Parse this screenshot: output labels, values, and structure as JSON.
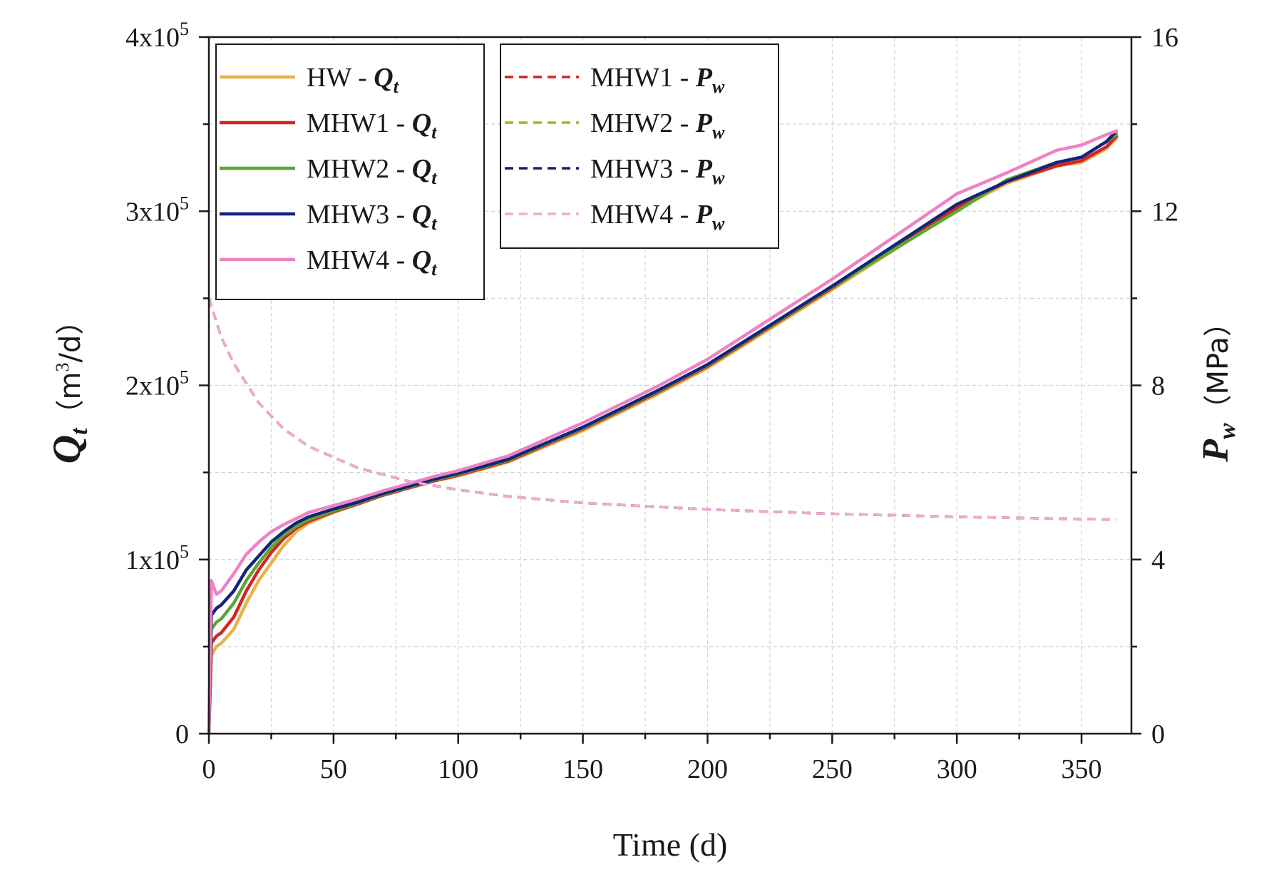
{
  "chart_data": {
    "type": "line",
    "xlabel": "Time (d)",
    "ylabel_left": {
      "symbol": "Q",
      "sub": "t",
      "unit_prefix": "（m",
      "unit_sup": "3",
      "unit_suffix": "/d）"
    },
    "ylabel_right": {
      "symbol": "P",
      "sub": "w",
      "unit": "（MPa）"
    },
    "xlim": [
      0,
      370
    ],
    "ylim_left": [
      0,
      400000
    ],
    "ylim_right": [
      0,
      16
    ],
    "x_ticks": [
      0,
      50,
      100,
      150,
      200,
      250,
      300,
      350
    ],
    "x_tick_labels": [
      "0",
      "50",
      "100",
      "150",
      "200",
      "250",
      "300",
      "350"
    ],
    "y_left_ticks": [
      0,
      100000,
      200000,
      300000,
      400000
    ],
    "y_left_tick_labels": [
      {
        "base": "0",
        "exp": ""
      },
      {
        "base": "1x10",
        "exp": "5"
      },
      {
        "base": "2x10",
        "exp": "5"
      },
      {
        "base": "3x10",
        "exp": "5"
      },
      {
        "base": "4x10",
        "exp": "5"
      }
    ],
    "y_right_ticks": [
      0,
      4,
      8,
      12,
      16
    ],
    "y_right_tick_labels": [
      "0",
      "4",
      "8",
      "12",
      "16"
    ],
    "grid": true,
    "legend_left_position": "top-left",
    "legend_right_position": "top-center",
    "series": [
      {
        "name": "HW",
        "quantity": "Q",
        "sub": "t",
        "axis": "left",
        "style": "solid",
        "color": "#e8b24a",
        "x": [
          0,
          1,
          3,
          5,
          10,
          15,
          20,
          25,
          30,
          35,
          40,
          50,
          60,
          70,
          80,
          90,
          100,
          120,
          150,
          180,
          200,
          250,
          300,
          320,
          340,
          350,
          360,
          364
        ],
        "values": [
          0,
          45000,
          50000,
          52000,
          60000,
          75000,
          88000,
          98000,
          108000,
          116000,
          121000,
          127000,
          132000,
          137000,
          141000,
          145000,
          148000,
          156000,
          174000,
          195000,
          210000,
          255000,
          301000,
          316000,
          326000,
          328000,
          336000,
          342000
        ]
      },
      {
        "name": "MHW1",
        "quantity": "Q",
        "sub": "t",
        "axis": "left",
        "style": "solid",
        "color": "#d42424",
        "x": [
          0,
          1,
          3,
          5,
          10,
          15,
          20,
          25,
          30,
          35,
          40,
          50,
          60,
          70,
          80,
          90,
          100,
          120,
          150,
          180,
          200,
          250,
          300,
          320,
          340,
          350,
          360,
          364
        ],
        "values": [
          0,
          52000,
          56000,
          58000,
          67000,
          82000,
          94000,
          104000,
          112000,
          118000,
          122000,
          127500,
          132000,
          137000,
          141000,
          145000,
          148500,
          156500,
          175000,
          196000,
          211000,
          256000,
          302000,
          317000,
          326000,
          329000,
          337000,
          343000
        ]
      },
      {
        "name": "MHW2",
        "quantity": "Q",
        "sub": "t",
        "axis": "left",
        "style": "solid",
        "color": "#5aa830",
        "x": [
          0,
          1,
          3,
          5,
          10,
          15,
          20,
          25,
          30,
          35,
          40,
          50,
          60,
          70,
          80,
          90,
          100,
          120,
          150,
          180,
          200,
          250,
          300,
          320,
          340,
          350,
          360,
          364
        ],
        "values": [
          0,
          60000,
          64000,
          66000,
          75000,
          88000,
          98000,
          107000,
          114000,
          119000,
          123000,
          128000,
          132500,
          137500,
          141500,
          145500,
          149000,
          157000,
          175500,
          196500,
          211500,
          256500,
          300000,
          318000,
          328000,
          331000,
          340000,
          344000
        ]
      },
      {
        "name": "MHW3",
        "quantity": "Q",
        "sub": "t",
        "axis": "left",
        "style": "solid",
        "color": "#14247a",
        "x": [
          0,
          1,
          3,
          5,
          10,
          15,
          20,
          25,
          30,
          35,
          40,
          50,
          60,
          70,
          80,
          90,
          100,
          120,
          150,
          180,
          200,
          250,
          300,
          320,
          340,
          350,
          360,
          364
        ],
        "values": [
          0,
          68000,
          72000,
          74000,
          82000,
          94000,
          102000,
          110000,
          116000,
          121000,
          124500,
          129000,
          133000,
          138000,
          142000,
          146000,
          149500,
          157500,
          176000,
          197000,
          212000,
          257000,
          304000,
          317000,
          328000,
          331000,
          340000,
          346000
        ]
      },
      {
        "name": "MHW4",
        "quantity": "Q",
        "sub": "t",
        "axis": "left",
        "style": "solid",
        "color": "#ee82c4",
        "x": [
          0,
          1,
          3,
          5,
          10,
          15,
          20,
          25,
          30,
          35,
          40,
          50,
          60,
          70,
          80,
          90,
          100,
          120,
          150,
          180,
          200,
          250,
          300,
          320,
          340,
          350,
          360,
          364
        ],
        "values": [
          0,
          88000,
          80000,
          82000,
          92000,
          103000,
          110000,
          116000,
          120000,
          123500,
          127000,
          131000,
          135000,
          139500,
          143500,
          147500,
          151000,
          159500,
          178500,
          199500,
          215000,
          261000,
          310000,
          322000,
          335000,
          338000,
          344000,
          346000
        ]
      },
      {
        "name": "MHW1",
        "quantity": "P",
        "sub": "w",
        "axis": "right",
        "style": "dashed",
        "color": "#d42424",
        "x": [
          0,
          5,
          10,
          20,
          30,
          40,
          50,
          60,
          70,
          80,
          90,
          100,
          120,
          150,
          200,
          250,
          300,
          350,
          364
        ],
        "values": [
          10.0,
          9.1,
          8.5,
          7.6,
          7.0,
          6.6,
          6.35,
          6.1,
          5.95,
          5.8,
          5.7,
          5.6,
          5.45,
          5.3,
          5.15,
          5.05,
          4.98,
          4.93,
          4.92
        ]
      },
      {
        "name": "MHW2",
        "quantity": "P",
        "sub": "w",
        "axis": "right",
        "style": "dashed",
        "color": "#8ec21f",
        "x": [
          0,
          5,
          10,
          20,
          30,
          40,
          50,
          60,
          70,
          80,
          90,
          100,
          120,
          150,
          200,
          250,
          300,
          350,
          364
        ],
        "values": [
          10.0,
          9.1,
          8.5,
          7.6,
          7.0,
          6.6,
          6.35,
          6.1,
          5.95,
          5.8,
          5.7,
          5.6,
          5.45,
          5.3,
          5.15,
          5.05,
          4.98,
          4.93,
          4.92
        ]
      },
      {
        "name": "MHW3",
        "quantity": "P",
        "sub": "w",
        "axis": "right",
        "style": "dashed",
        "color": "#14247a",
        "x": [
          0,
          5,
          10,
          20,
          30,
          40,
          50,
          60,
          70,
          80,
          90,
          100,
          120,
          150,
          200,
          250,
          300,
          350,
          364
        ],
        "values": [
          10.0,
          9.1,
          8.5,
          7.6,
          7.0,
          6.6,
          6.35,
          6.1,
          5.95,
          5.8,
          5.7,
          5.6,
          5.45,
          5.3,
          5.15,
          5.05,
          4.98,
          4.93,
          4.92
        ]
      },
      {
        "name": "MHW4",
        "quantity": "P",
        "sub": "w",
        "axis": "right",
        "style": "dashed",
        "color": "#f4a9d6",
        "x": [
          0,
          5,
          10,
          20,
          30,
          40,
          50,
          60,
          70,
          80,
          90,
          100,
          120,
          150,
          200,
          250,
          300,
          350,
          364
        ],
        "values": [
          10.0,
          9.1,
          8.5,
          7.6,
          7.0,
          6.6,
          6.35,
          6.1,
          5.95,
          5.8,
          5.7,
          5.6,
          5.45,
          5.3,
          5.15,
          5.05,
          4.98,
          4.93,
          4.92
        ]
      }
    ]
  }
}
